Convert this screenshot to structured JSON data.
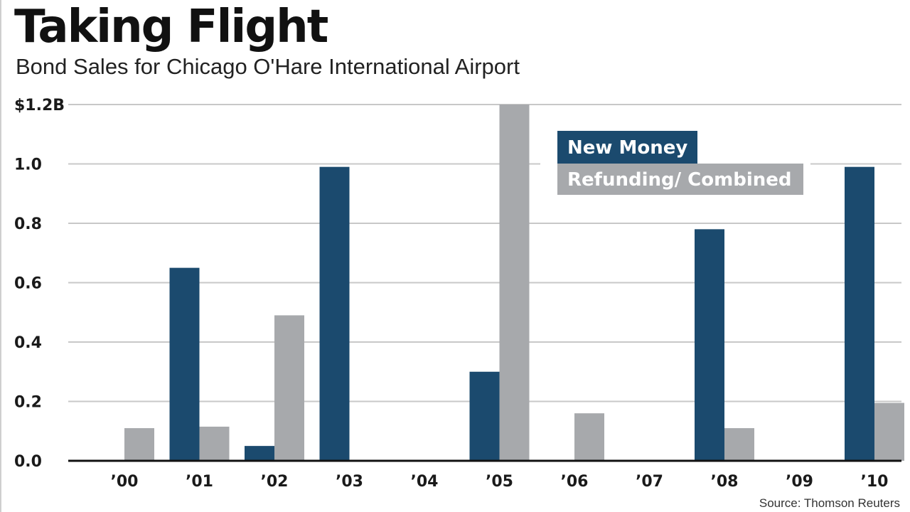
{
  "title": "Taking Flight",
  "subtitle": "Bond Sales for Chicago O'Hare International Airport",
  "source": "Source: Thomson Reuters",
  "colors": {
    "new_money": "#1b4a6e",
    "refunding": "#a7a9ac",
    "grid": "#c8c8c8",
    "axis": "#111111"
  },
  "chart_data": {
    "type": "bar",
    "title": "Taking Flight",
    "subtitle": "Bond Sales for Chicago O'Hare International Airport",
    "xlabel": "",
    "ylabel": "",
    "categories": [
      "’00",
      "’01",
      "’02",
      "’03",
      "’04",
      "’05",
      "’06",
      "’07",
      "’08",
      "’09",
      "’10"
    ],
    "ylim": [
      0,
      1.2
    ],
    "yticks": [
      0,
      0.2,
      0.4,
      0.6,
      0.8,
      1.0,
      1.2
    ],
    "ytick_labels": [
      "0.0",
      "0.2",
      "0.4",
      "0.6",
      "0.8",
      "1.0",
      "$1.2B"
    ],
    "grid": true,
    "legend_position": "top-right",
    "series": [
      {
        "name": "New Money",
        "color": "#1b4a6e",
        "values": [
          0,
          0.65,
          0.05,
          0.99,
          0,
          0.3,
          0,
          0,
          0.78,
          0,
          0.99
        ]
      },
      {
        "name": "Refunding/ Combined",
        "color": "#a7a9ac",
        "values": [
          0.11,
          0.115,
          0.49,
          0,
          0,
          1.2,
          0.16,
          0,
          0.11,
          0,
          0.195
        ]
      }
    ]
  }
}
